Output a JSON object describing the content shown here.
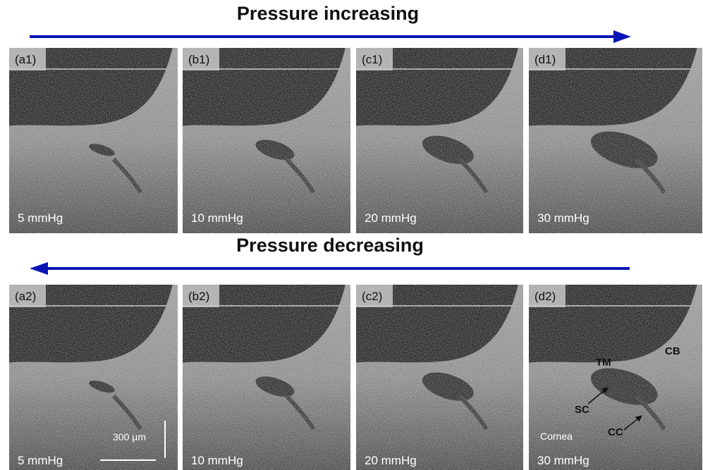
{
  "rows": [
    {
      "heading": "Pressure increasing",
      "panels": [
        {
          "label": "(a1)",
          "pressure": "5 mmHg"
        },
        {
          "label": "(b1)",
          "pressure": "10 mmHg"
        },
        {
          "label": "(c1)",
          "pressure": "20 mmHg"
        },
        {
          "label": "(d1)",
          "pressure": "30 mmHg"
        }
      ]
    },
    {
      "heading": "Pressure decreasing",
      "panels": [
        {
          "label": "(a2)",
          "pressure": "5 mmHg"
        },
        {
          "label": "(b2)",
          "pressure": "10 mmHg"
        },
        {
          "label": "(c2)",
          "pressure": "20 mmHg"
        },
        {
          "label": "(d2)",
          "pressure": "30 mmHg"
        }
      ]
    }
  ],
  "annotations": {
    "tm": "TM",
    "cb": "CB",
    "sc": "SC",
    "cc": "CC",
    "cornea": "Cornea"
  },
  "scale_bar": "300 µm"
}
